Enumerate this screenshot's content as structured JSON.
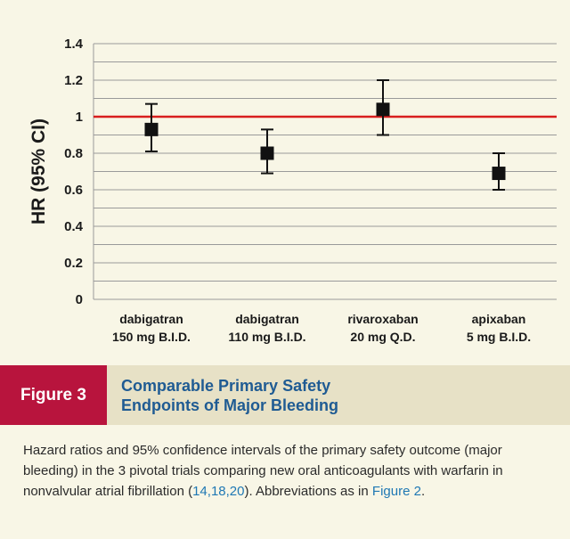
{
  "chart_data": {
    "type": "errorbar",
    "ylabel": "HR (95% CI)",
    "ylim": [
      0,
      1.4
    ],
    "yticks": [
      "0",
      "0.2",
      "0.4",
      "0.6",
      "0.8",
      "1",
      "1.2",
      "1.4"
    ],
    "gridlines": [
      0,
      0.1,
      0.2,
      0.3,
      0.4,
      0.5,
      0.6,
      0.7,
      0.8,
      0.9,
      1.0,
      1.1,
      1.2,
      1.3,
      1.4
    ],
    "reference_line": {
      "value": 1.0,
      "color": "#d81e1e"
    },
    "points": [
      {
        "label_line1": "dabigatran",
        "label_line2": "150 mg B.I.D.",
        "hr": 0.93,
        "lower": 0.81,
        "upper": 1.07
      },
      {
        "label_line1": "dabigatran",
        "label_line2": "110 mg B.I.D.",
        "hr": 0.8,
        "lower": 0.69,
        "upper": 0.93
      },
      {
        "label_line1": "rivaroxaban",
        "label_line2": "20 mg Q.D.",
        "hr": 1.04,
        "lower": 0.9,
        "upper": 1.2
      },
      {
        "label_line1": "apixaban",
        "label_line2": "5 mg B.I.D.",
        "hr": 0.69,
        "lower": 0.6,
        "upper": 0.8
      }
    ]
  },
  "caption": {
    "figure_label": "Figure 3",
    "title_line1": "Comparable Primary Safety",
    "title_line2": "Endpoints of Major Bleeding",
    "text_part1": "Hazard ratios and 95% confidence intervals of the primary safety outcome (major bleeding) in the 3 pivotal trials comparing new oral anticoagulants with warfarin in nonvalvular atrial fibrillation (",
    "ref_link": "14,18,20",
    "text_part2": "). Abbreviations as in ",
    "figure_link": "Figure 2",
    "text_end": "."
  },
  "colors": {
    "background": "#f8f6e6",
    "caption_bar": "#e7e1c6",
    "figure_label_bg": "#b8143d",
    "title_color": "#1f5b93",
    "link_color": "#1f78b4",
    "reference_line": "#d81e1e",
    "marker": "#111111"
  }
}
